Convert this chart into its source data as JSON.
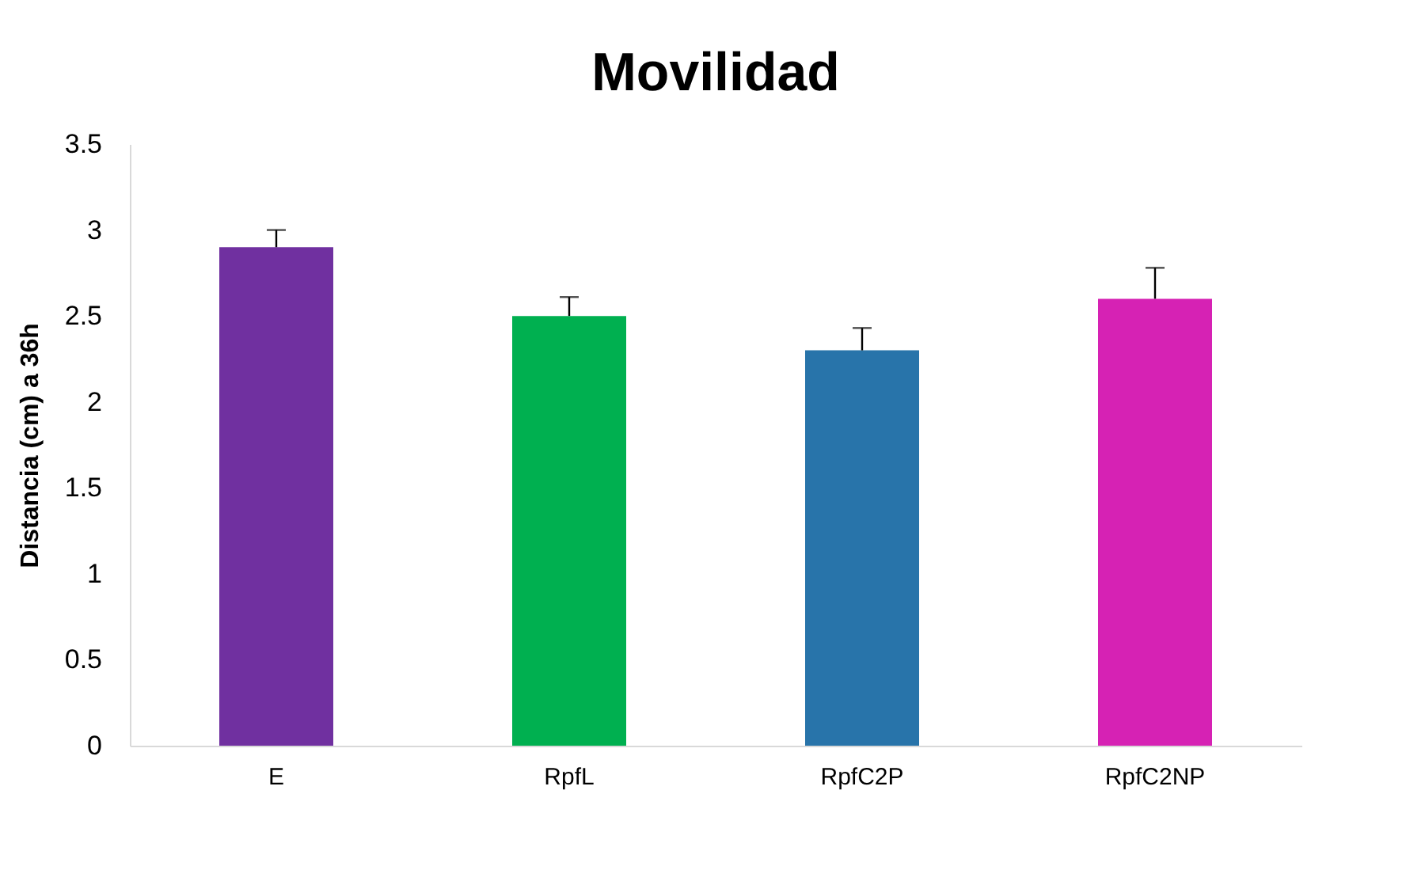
{
  "chart_data": {
    "type": "bar",
    "title": "Movilidad",
    "ylabel": "Distancia (cm) a 36h",
    "categories": [
      "E",
      "RpfL",
      "RpfC2P",
      "RpfC2NP"
    ],
    "values": [
      2.9,
      2.5,
      2.3,
      2.6
    ],
    "colors": [
      "#7030a0",
      "#00b050",
      "#2874aa",
      "#d622b4"
    ],
    "errors": [
      [
        2.9,
        3.0
      ],
      [
        2.5,
        2.61
      ],
      [
        2.3,
        2.43
      ],
      [
        2.6,
        2.78
      ]
    ],
    "ylim": [
      0,
      3.5
    ],
    "yticks": [
      0,
      0.5,
      1,
      1.5,
      2,
      2.5,
      3,
      3.5
    ],
    "grid": false
  }
}
